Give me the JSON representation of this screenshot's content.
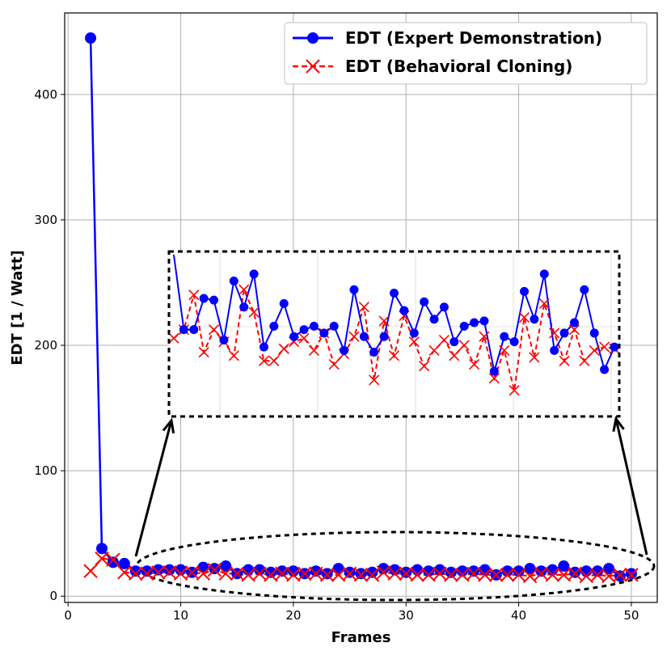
{
  "chart_data": {
    "type": "line",
    "xlabel": "Frames",
    "ylabel": "EDT [1 / Watt]",
    "xlim": [
      -0.3,
      52.3
    ],
    "ylim": [
      -5,
      465
    ],
    "xticks": [
      0,
      10,
      20,
      30,
      40,
      50
    ],
    "yticks": [
      0,
      100,
      200,
      300,
      400
    ],
    "grid": true,
    "legend_position": "top-right",
    "x": [
      2,
      3,
      4,
      5,
      6,
      7,
      8,
      9,
      10,
      11,
      12,
      13,
      14,
      15,
      16,
      17,
      18,
      19,
      20,
      21,
      22,
      23,
      24,
      25,
      26,
      27,
      28,
      29,
      30,
      31,
      32,
      33,
      34,
      35,
      36,
      37,
      38,
      39,
      40,
      41,
      42,
      43,
      44,
      45,
      46,
      47,
      48,
      49,
      50
    ],
    "series": [
      {
        "name": "EDT (Expert Demonstration)",
        "color": "#0000ff",
        "marker": "circle",
        "linestyle": "solid",
        "values": [
          445,
          38,
          27,
          26,
          20,
          20,
          21,
          21,
          21,
          19,
          23,
          22,
          24,
          18,
          21,
          21,
          19,
          20,
          20,
          18,
          20,
          18,
          22,
          19,
          18,
          19,
          22,
          21,
          19,
          21,
          20,
          21,
          19,
          20,
          20,
          21,
          17,
          20,
          20,
          22,
          20,
          21,
          24,
          19,
          20,
          20,
          22,
          16,
          18
        ]
      },
      {
        "name": "EDT (Behavioral Cloning)",
        "color": "#ff0000",
        "marker": "x",
        "linestyle": "dashed",
        "values": [
          20,
          30,
          29,
          19,
          18,
          18,
          19,
          19,
          18,
          19,
          18,
          21,
          18,
          18,
          17,
          18,
          17,
          18,
          17,
          18,
          18,
          17,
          17,
          18,
          17,
          17,
          19,
          18,
          18,
          17,
          17,
          18,
          17,
          17,
          18,
          17,
          17,
          17,
          17,
          16,
          18,
          17,
          17,
          18,
          16,
          17,
          16,
          17,
          17
        ]
      }
    ],
    "inset": {
      "description": "zoomed view of frames 10-50",
      "xlim": [
        9.5,
        49.5
      ],
      "expert_values": [
        22.5,
        19.0,
        19.0,
        20.8,
        20.7,
        18.4,
        21.8,
        20.3,
        22.2,
        18.0,
        19.2,
        20.5,
        18.6,
        19.0,
        19.2,
        18.8,
        19.2,
        17.8,
        21.3,
        18.6,
        17.7,
        18.6,
        21.1,
        20.1,
        18.8,
        20.6,
        19.6,
        20.3,
        18.3,
        19.2,
        19.4,
        19.5,
        16.6,
        18.6,
        18.3,
        21.2,
        19.6,
        22.2,
        17.8,
        18.8,
        19.4,
        21.3,
        18.8,
        16.7,
        18.0
      ],
      "cloning_values": [
        18.5,
        19.0,
        21.0,
        17.7,
        19.0,
        18.3,
        17.5,
        21.3,
        20.0,
        17.2,
        17.2,
        17.9,
        18.3,
        18.5,
        17.8,
        18.8,
        17.0,
        17.6,
        18.6,
        20.3,
        16.1,
        19.5,
        17.5,
        19.8,
        18.3,
        16.9,
        17.8,
        18.4,
        17.5,
        18.1,
        17.0,
        18.6,
        16.2,
        17.8,
        15.5,
        19.7,
        17.4,
        20.5,
        18.8,
        17.2,
        19.0,
        17.2,
        17.8,
        18.0,
        17.9
      ]
    }
  }
}
